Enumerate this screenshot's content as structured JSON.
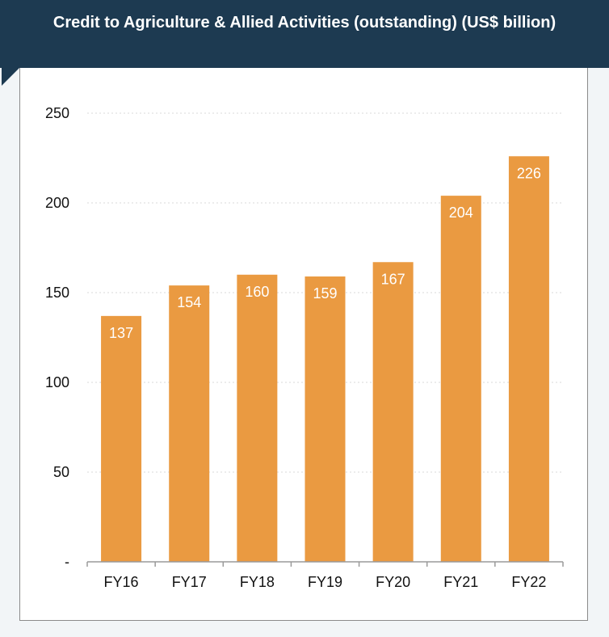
{
  "chart_data": {
    "type": "bar",
    "title": "Credit to Agriculture & Allied Activities (outstanding) (US$ billion)",
    "categories": [
      "FY16",
      "FY17",
      "FY18",
      "FY19",
      "FY20",
      "FY21",
      "FY22"
    ],
    "values": [
      137,
      154,
      160,
      159,
      167,
      204,
      226
    ],
    "data_labels": [
      "137",
      "154",
      "160",
      "159",
      "167",
      "204",
      "226"
    ],
    "y_ticks": [
      0,
      50,
      100,
      150,
      200,
      250
    ],
    "y_tick_labels": [
      "-",
      "50",
      "100",
      "150",
      "200",
      "250"
    ],
    "ylim": [
      0,
      250
    ],
    "xlabel": "",
    "ylabel": "",
    "grid": true,
    "bar_color": "#ea9a41",
    "label_color": "#ffffff",
    "header_color": "#1d3a51"
  }
}
